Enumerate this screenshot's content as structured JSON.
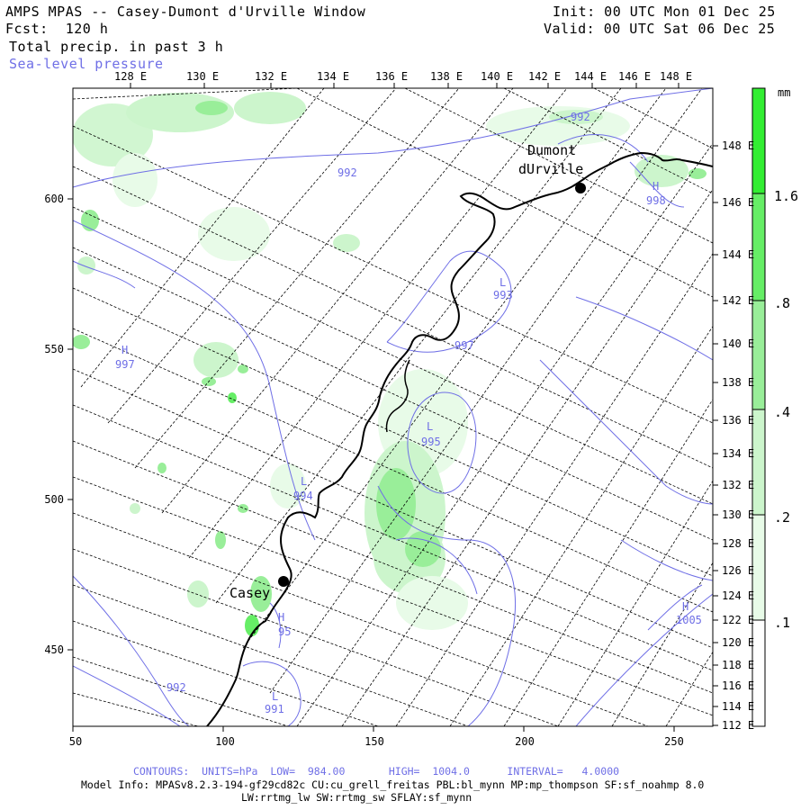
{
  "header": {
    "title": "AMPS MPAS -- Casey-Dumont d'Urville Window",
    "forecast": "Fcst:  120 h",
    "field": "Total precip. in past 3 h",
    "overlay": "Sea-level pressure",
    "init": "Init: 00 UTC Mon 01 Dec 25",
    "valid": "Valid: 00 UTC Sat 06 Dec 25"
  },
  "axes": {
    "top_lon_labels": [
      "128 E",
      "130 E",
      "132 E",
      "134 E",
      "136 E",
      "138 E",
      "140 E",
      "142 E",
      "144 E",
      "146 E",
      "148 E"
    ],
    "right_lon_labels": [
      "148 E",
      "146 E",
      "144 E",
      "142 E",
      "140 E",
      "138 E",
      "136 E",
      "134 E",
      "132 E",
      "130 E",
      "128 E",
      "126 E",
      "124 E",
      "122 E",
      "120 E",
      "118 E",
      "116 E",
      "114 E",
      "112 E"
    ],
    "left_y_labels": [
      "600",
      "550",
      "500",
      "450"
    ],
    "bottom_x_labels": [
      "50",
      "100",
      "150",
      "200",
      "250"
    ]
  },
  "colorbar": {
    "unit": "mm",
    "labels": [
      "1.6",
      ".8",
      ".4",
      ".2",
      ".1"
    ],
    "colors": [
      "#33ee33",
      "#66ee66",
      "#99ee99",
      "#ccf5cc",
      "#e8fbe8"
    ]
  },
  "stations": [
    {
      "name": "Casey"
    },
    {
      "name": "Dumont"
    },
    {
      "name": "dUrville"
    }
  ],
  "pressure_labels": [
    {
      "text": "992"
    },
    {
      "text": "992"
    },
    {
      "text": "H"
    },
    {
      "text": "997"
    },
    {
      "text": "L"
    },
    {
      "text": "993"
    },
    {
      "text": "997"
    },
    {
      "text": "L"
    },
    {
      "text": "995"
    },
    {
      "text": "L"
    },
    {
      "text": "994"
    },
    {
      "text": "H"
    },
    {
      "text": "95"
    },
    {
      "text": "992"
    },
    {
      "text": "L"
    },
    {
      "text": "991"
    },
    {
      "text": "H"
    },
    {
      "text": "1005"
    },
    {
      "text": "H"
    },
    {
      "text": "998"
    }
  ],
  "footer": {
    "contours": "CONTOURS:  UNITS=hPa  LOW=  984.00       HIGH=  1004.0      INTERVAL=   4.0000",
    "model_info": "Model Info: MPASv8.2.3-194-gf29cd82c CU:cu_grell_freitas PBL:bl_mynn MP:mp_thompson SF:sf_noahmp 8.0",
    "model_info2": "LW:rrtmg_lw SW:rrtmg_sw SFLAY:sf_mynn"
  },
  "colors": {
    "contour": "#6f6fe6",
    "coast": "#000000",
    "grid": "#000000"
  }
}
